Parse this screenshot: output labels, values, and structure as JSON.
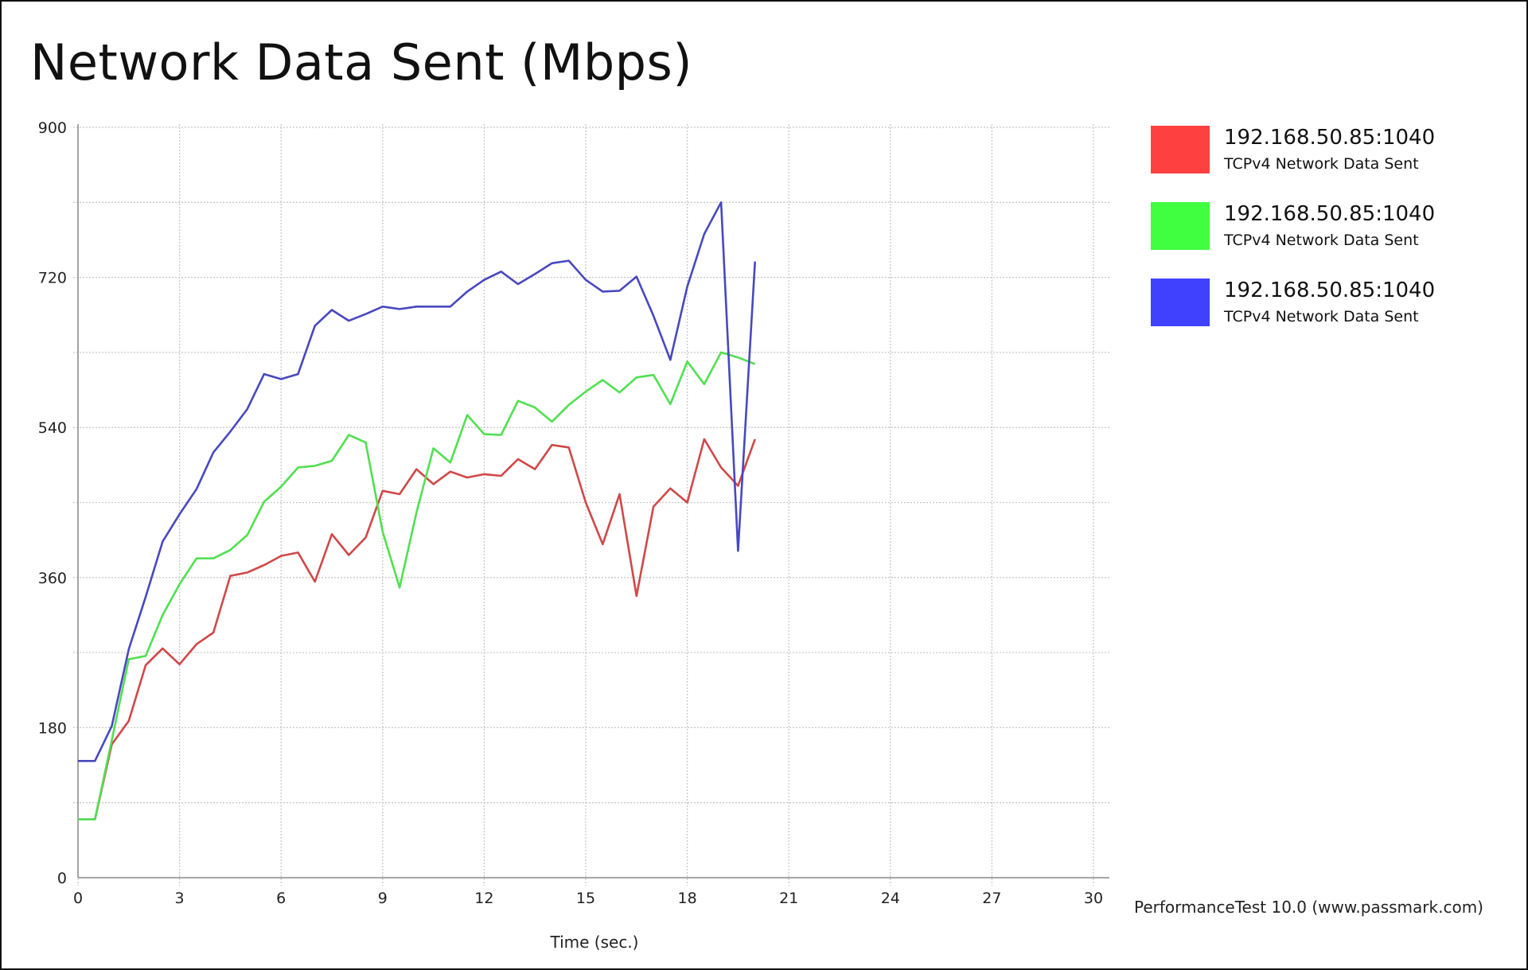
{
  "title": "Network Data Sent (Mbps)",
  "credit": "PerformanceTest 10.0 (www.passmark.com)",
  "legend": [
    {
      "name": "192.168.50.85:1040",
      "sub": "TCPv4 Network Data Sent",
      "color": "#ff4040"
    },
    {
      "name": "192.168.50.85:1040",
      "sub": "TCPv4 Network Data Sent",
      "color": "#40ff40"
    },
    {
      "name": "192.168.50.85:1040",
      "sub": "TCPv4 Network Data Sent",
      "color": "#4040ff"
    }
  ],
  "chart_data": {
    "type": "line",
    "title": "Network Data Sent (Mbps)",
    "xlabel": "Time (sec.)",
    "ylabel": "",
    "xlim": [
      0,
      30
    ],
    "ylim": [
      0,
      900
    ],
    "x_ticks": [
      0,
      3,
      6,
      9,
      12,
      15,
      18,
      21,
      24,
      27,
      30
    ],
    "y_ticks": [
      0,
      180,
      360,
      540,
      720,
      900
    ],
    "y_tick_labels": [
      "0",
      "180",
      "360",
      "540",
      "720",
      "900"
    ],
    "grid": true,
    "legend_position": "right",
    "series": [
      {
        "color": "#d04848",
        "x": [
          0,
          0.5,
          1,
          1.5,
          2,
          2.5,
          3,
          3.5,
          4,
          4.5,
          5,
          5.5,
          6,
          6.5,
          7,
          7.5,
          8,
          8.5,
          9,
          9.5,
          10,
          10.5,
          11,
          11.5,
          12,
          12.5,
          13,
          13.5,
          14,
          14.5,
          15,
          15.5,
          16,
          16.5,
          17,
          17.5,
          18,
          18.5,
          19,
          19.5,
          20
        ],
        "y": [
          70,
          70,
          160,
          188,
          255,
          275,
          256,
          280,
          294,
          362,
          366,
          375,
          386,
          390,
          355,
          412,
          387,
          408,
          464,
          460,
          490,
          472,
          487,
          480,
          484,
          482,
          502,
          490,
          519,
          516,
          450,
          400,
          460,
          338,
          445,
          467,
          450,
          526,
          492,
          470,
          526
        ]
      },
      {
        "color": "#50e050",
        "x": [
          0,
          0.5,
          1,
          1.5,
          2,
          2.5,
          3,
          3.5,
          4,
          4.5,
          5,
          5.5,
          6,
          6.5,
          7,
          7.5,
          8,
          8.5,
          9,
          9.5,
          10,
          10.5,
          11,
          11.5,
          12,
          12.5,
          13,
          13.5,
          14,
          14.5,
          15,
          15.5,
          16,
          16.5,
          17,
          17.5,
          18,
          18.5,
          19,
          19.5,
          20
        ],
        "y": [
          70,
          70,
          165,
          262,
          266,
          315,
          352,
          383,
          383,
          393,
          411,
          451,
          469,
          492,
          494,
          500,
          531,
          522,
          415,
          348,
          438,
          515,
          498,
          555,
          532,
          531,
          572,
          564,
          547,
          567,
          583,
          597,
          582,
          600,
          603,
          568,
          619,
          592,
          630,
          624,
          616
        ]
      },
      {
        "color": "#4848c0",
        "x": [
          0,
          0.5,
          1,
          1.5,
          2,
          2.5,
          3,
          3.5,
          4,
          4.5,
          5,
          5.5,
          6,
          6.5,
          7,
          7.5,
          8,
          8.5,
          9,
          9.5,
          10,
          10.5,
          11,
          11.5,
          12,
          12.5,
          13,
          13.5,
          14,
          14.5,
          15,
          15.5,
          16,
          16.5,
          17,
          17.5,
          18,
          18.5,
          19,
          19.5,
          20
        ],
        "y": [
          140,
          140,
          182,
          274,
          337,
          403,
          436,
          466,
          510,
          535,
          562,
          604,
          598,
          604,
          662,
          681,
          668,
          676,
          685,
          682,
          685,
          685,
          685,
          703,
          717,
          727,
          712,
          724,
          737,
          740,
          717,
          703,
          704,
          721,
          674,
          621,
          709,
          772,
          810,
          392,
          739
        ]
      }
    ]
  }
}
